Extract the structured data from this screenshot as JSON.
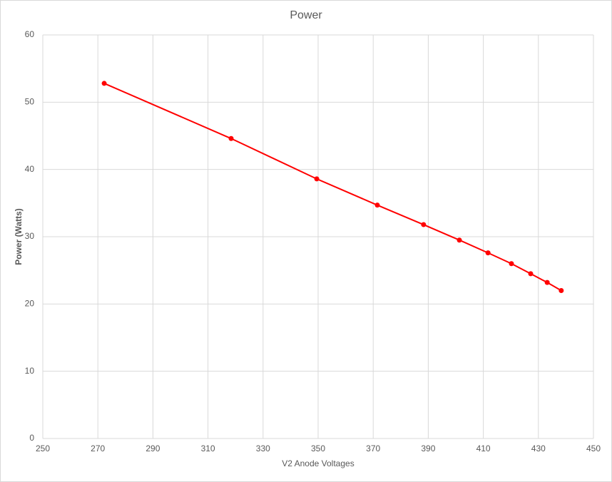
{
  "chart_data": {
    "type": "line",
    "title": "Power",
    "x_label": "V2 Anode Voltages",
    "y_label": "Power (Watts)",
    "x": [
      272.3,
      318.4,
      349.5,
      371.5,
      388.3,
      401.3,
      411.7,
      420.2,
      427.2,
      433.2,
      438.3
    ],
    "series": [
      {
        "name": "Power",
        "color": "#ff0000",
        "values": [
          52.8,
          44.6,
          38.6,
          34.7,
          31.8,
          29.5,
          27.6,
          26.0,
          24.5,
          23.2,
          22.0
        ]
      }
    ],
    "xlim": [
      250,
      450
    ],
    "xticks": [
      250,
      270,
      290,
      310,
      330,
      350,
      370,
      390,
      410,
      430,
      450
    ],
    "ylim": [
      0,
      60
    ],
    "yticks": [
      0,
      10,
      20,
      30,
      40,
      50,
      60
    ],
    "grid": true
  }
}
